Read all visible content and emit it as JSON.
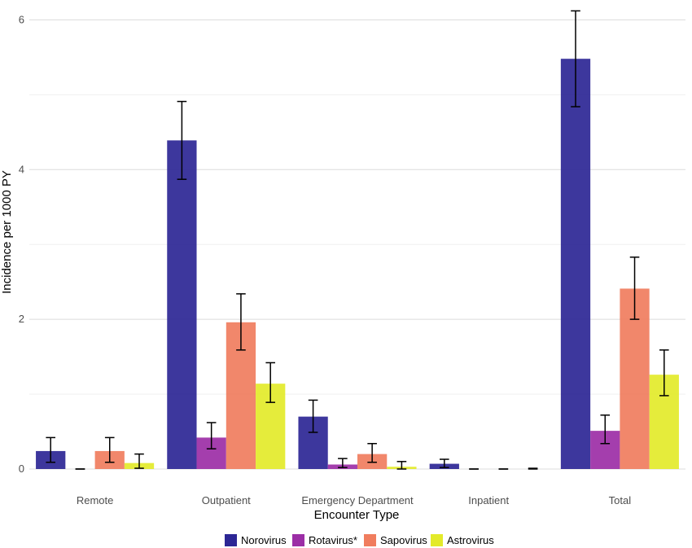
{
  "chart_data": {
    "type": "bar",
    "xlabel": "Encounter Type",
    "ylabel": "Incidence per 1000 PY",
    "categories": [
      "Remote",
      "Outpatient",
      "Emergency Department",
      "Inpatient",
      "Total"
    ],
    "ylim": [
      0,
      6.2
    ],
    "yticks": [
      0,
      2,
      4,
      6
    ],
    "ytick_labels": [
      "0",
      "2",
      "4",
      "6"
    ],
    "grid": true,
    "legend_position": "bottom",
    "series": [
      {
        "name": "Norovirus",
        "color": "#2c2695",
        "values": [
          0.24,
          4.39,
          0.7,
          0.07,
          5.48
        ],
        "error_low": [
          0.09,
          3.87,
          0.49,
          0.02,
          4.84
        ],
        "error_high": [
          0.42,
          4.91,
          0.92,
          0.13,
          6.12
        ]
      },
      {
        "name": "Rotavirus*",
        "color": "#9c2ea6",
        "values": [
          0.0,
          0.42,
          0.06,
          0.0,
          0.51
        ],
        "error_low": [
          0.0,
          0.27,
          0.02,
          0.0,
          0.34
        ],
        "error_high": [
          0.0,
          0.62,
          0.14,
          0.0,
          0.72
        ]
      },
      {
        "name": "Sapovirus",
        "color": "#f07d5e",
        "values": [
          0.24,
          1.96,
          0.2,
          0.0,
          2.41
        ],
        "error_low": [
          0.09,
          1.59,
          0.09,
          0.0,
          2.0
        ],
        "error_high": [
          0.42,
          2.34,
          0.34,
          0.0,
          2.83
        ]
      },
      {
        "name": "Astrovirus",
        "color": "#e3ea2a",
        "values": [
          0.08,
          1.14,
          0.03,
          0.0,
          1.26
        ],
        "error_low": [
          0.01,
          0.89,
          0.0,
          0.0,
          0.98
        ],
        "error_high": [
          0.2,
          1.42,
          0.1,
          0.01,
          1.59
        ]
      }
    ]
  }
}
